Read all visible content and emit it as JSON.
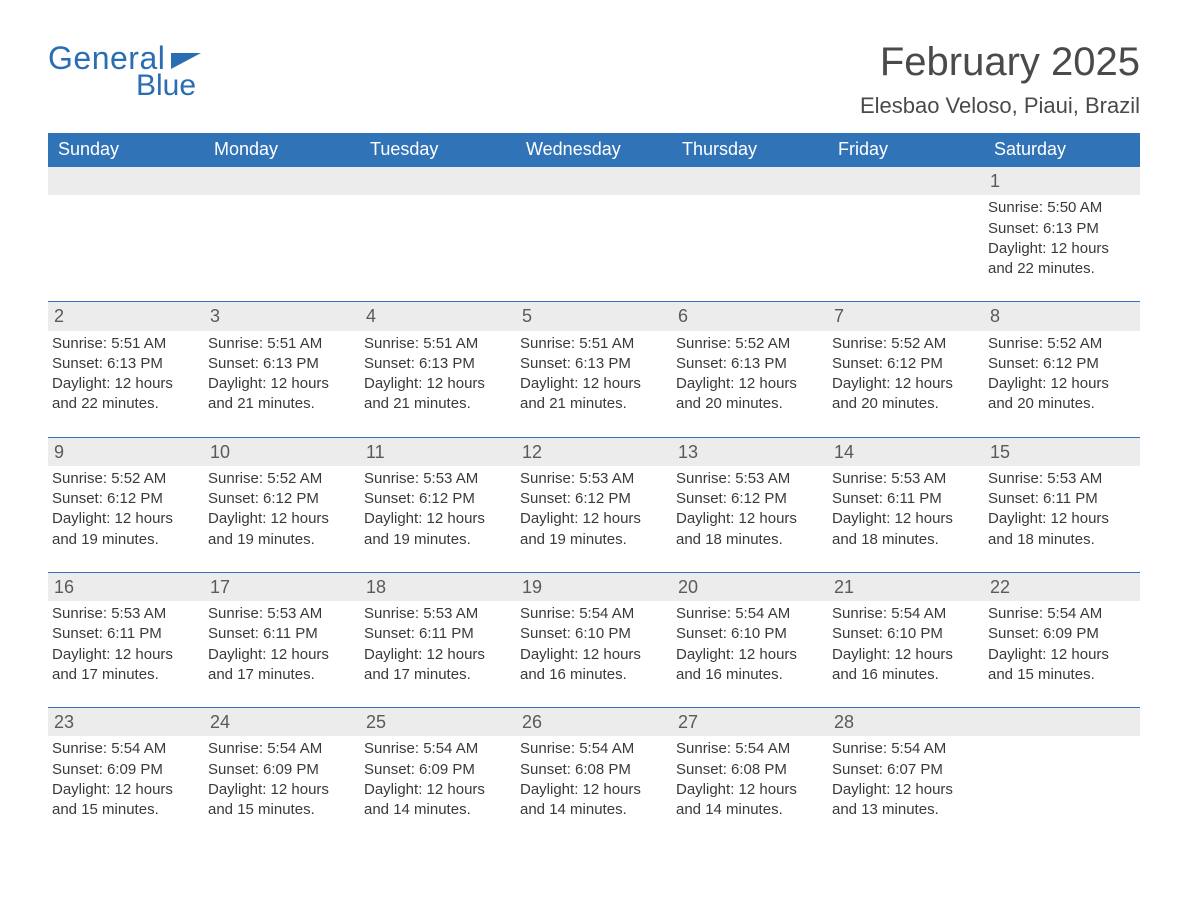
{
  "logo": {
    "line1": "General",
    "line2": "Blue"
  },
  "header": {
    "month_title": "February 2025",
    "location": "Elesbao Veloso, Piaui, Brazil"
  },
  "colors": {
    "accent": "#3173b7",
    "header_text": "#ffffff",
    "body_text": "#3a3a3a",
    "daynum_bg": "#ececec",
    "background": "#ffffff"
  },
  "typography": {
    "month_title_fontsize": 40,
    "location_fontsize": 22,
    "weekday_fontsize": 18,
    "body_fontsize": 15
  },
  "calendar": {
    "weekdays": [
      "Sunday",
      "Monday",
      "Tuesday",
      "Wednesday",
      "Thursday",
      "Friday",
      "Saturday"
    ],
    "weeks": [
      [
        null,
        null,
        null,
        null,
        null,
        null,
        {
          "d": "1",
          "sunrise": "5:50 AM",
          "sunset": "6:13 PM",
          "daylight": "12 hours and 22 minutes."
        }
      ],
      [
        {
          "d": "2",
          "sunrise": "5:51 AM",
          "sunset": "6:13 PM",
          "daylight": "12 hours and 22 minutes."
        },
        {
          "d": "3",
          "sunrise": "5:51 AM",
          "sunset": "6:13 PM",
          "daylight": "12 hours and 21 minutes."
        },
        {
          "d": "4",
          "sunrise": "5:51 AM",
          "sunset": "6:13 PM",
          "daylight": "12 hours and 21 minutes."
        },
        {
          "d": "5",
          "sunrise": "5:51 AM",
          "sunset": "6:13 PM",
          "daylight": "12 hours and 21 minutes."
        },
        {
          "d": "6",
          "sunrise": "5:52 AM",
          "sunset": "6:13 PM",
          "daylight": "12 hours and 20 minutes."
        },
        {
          "d": "7",
          "sunrise": "5:52 AM",
          "sunset": "6:12 PM",
          "daylight": "12 hours and 20 minutes."
        },
        {
          "d": "8",
          "sunrise": "5:52 AM",
          "sunset": "6:12 PM",
          "daylight": "12 hours and 20 minutes."
        }
      ],
      [
        {
          "d": "9",
          "sunrise": "5:52 AM",
          "sunset": "6:12 PM",
          "daylight": "12 hours and 19 minutes."
        },
        {
          "d": "10",
          "sunrise": "5:52 AM",
          "sunset": "6:12 PM",
          "daylight": "12 hours and 19 minutes."
        },
        {
          "d": "11",
          "sunrise": "5:53 AM",
          "sunset": "6:12 PM",
          "daylight": "12 hours and 19 minutes."
        },
        {
          "d": "12",
          "sunrise": "5:53 AM",
          "sunset": "6:12 PM",
          "daylight": "12 hours and 19 minutes."
        },
        {
          "d": "13",
          "sunrise": "5:53 AM",
          "sunset": "6:12 PM",
          "daylight": "12 hours and 18 minutes."
        },
        {
          "d": "14",
          "sunrise": "5:53 AM",
          "sunset": "6:11 PM",
          "daylight": "12 hours and 18 minutes."
        },
        {
          "d": "15",
          "sunrise": "5:53 AM",
          "sunset": "6:11 PM",
          "daylight": "12 hours and 18 minutes."
        }
      ],
      [
        {
          "d": "16",
          "sunrise": "5:53 AM",
          "sunset": "6:11 PM",
          "daylight": "12 hours and 17 minutes."
        },
        {
          "d": "17",
          "sunrise": "5:53 AM",
          "sunset": "6:11 PM",
          "daylight": "12 hours and 17 minutes."
        },
        {
          "d": "18",
          "sunrise": "5:53 AM",
          "sunset": "6:11 PM",
          "daylight": "12 hours and 17 minutes."
        },
        {
          "d": "19",
          "sunrise": "5:54 AM",
          "sunset": "6:10 PM",
          "daylight": "12 hours and 16 minutes."
        },
        {
          "d": "20",
          "sunrise": "5:54 AM",
          "sunset": "6:10 PM",
          "daylight": "12 hours and 16 minutes."
        },
        {
          "d": "21",
          "sunrise": "5:54 AM",
          "sunset": "6:10 PM",
          "daylight": "12 hours and 16 minutes."
        },
        {
          "d": "22",
          "sunrise": "5:54 AM",
          "sunset": "6:09 PM",
          "daylight": "12 hours and 15 minutes."
        }
      ],
      [
        {
          "d": "23",
          "sunrise": "5:54 AM",
          "sunset": "6:09 PM",
          "daylight": "12 hours and 15 minutes."
        },
        {
          "d": "24",
          "sunrise": "5:54 AM",
          "sunset": "6:09 PM",
          "daylight": "12 hours and 15 minutes."
        },
        {
          "d": "25",
          "sunrise": "5:54 AM",
          "sunset": "6:09 PM",
          "daylight": "12 hours and 14 minutes."
        },
        {
          "d": "26",
          "sunrise": "5:54 AM",
          "sunset": "6:08 PM",
          "daylight": "12 hours and 14 minutes."
        },
        {
          "d": "27",
          "sunrise": "5:54 AM",
          "sunset": "6:08 PM",
          "daylight": "12 hours and 14 minutes."
        },
        {
          "d": "28",
          "sunrise": "5:54 AM",
          "sunset": "6:07 PM",
          "daylight": "12 hours and 13 minutes."
        },
        null
      ]
    ],
    "labels": {
      "sunrise_prefix": "Sunrise: ",
      "sunset_prefix": "Sunset: ",
      "daylight_prefix": "Daylight: "
    }
  }
}
